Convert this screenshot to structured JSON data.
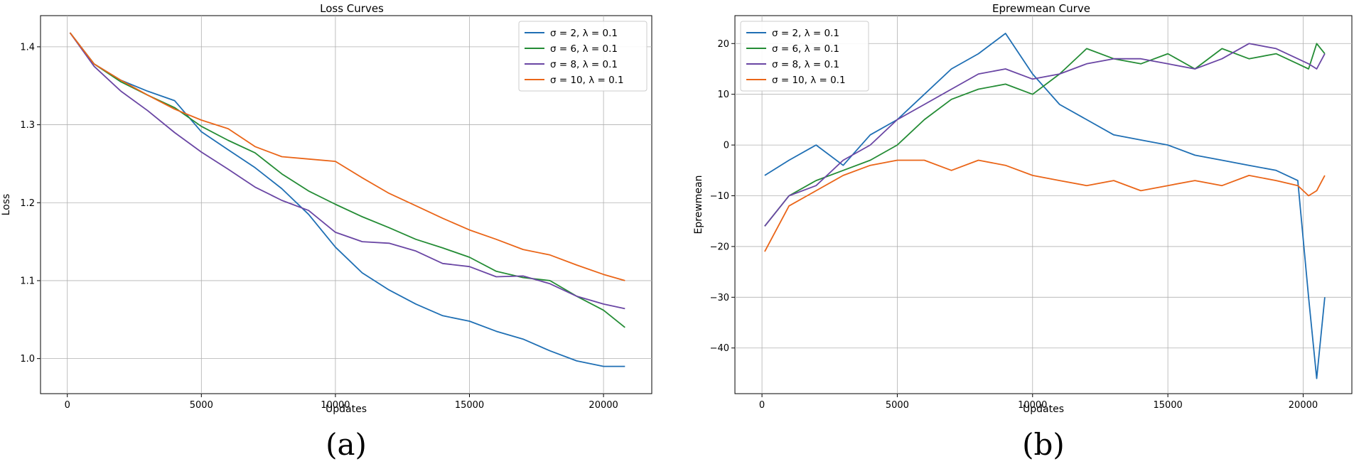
{
  "chart_data": [
    {
      "id": "a",
      "type": "line",
      "title": "Loss Curves",
      "xlabel": "Updates",
      "ylabel": "Loss",
      "caption": "(a)",
      "xlim": [
        -1000,
        21800
      ],
      "ylim": [
        0.955,
        1.44
      ],
      "xticks": [
        0,
        5000,
        10000,
        15000,
        20000
      ],
      "yticks": [
        1.0,
        1.1,
        1.2,
        1.3,
        1.4
      ],
      "ytick_labels": [
        "1.0",
        "1.1",
        "1.2",
        "1.3",
        "1.4"
      ],
      "grid": true,
      "legend_position": "top-right",
      "x": [
        100,
        1000,
        2000,
        3000,
        4000,
        5000,
        6000,
        7000,
        8000,
        9000,
        10000,
        11000,
        12000,
        13000,
        14000,
        15000,
        16000,
        17000,
        18000,
        19000,
        20000,
        20800
      ],
      "series": [
        {
          "name": "σ = 2, λ = 0.1",
          "color": "#1f6fb4",
          "values": [
            1.418,
            1.378,
            1.357,
            1.343,
            1.331,
            1.291,
            1.268,
            1.245,
            1.218,
            1.185,
            1.143,
            1.11,
            1.088,
            1.07,
            1.055,
            1.048,
            1.035,
            1.025,
            1.01,
            0.997,
            0.99,
            0.99
          ]
        },
        {
          "name": "σ = 6, λ = 0.1",
          "color": "#248c35",
          "values": [
            1.418,
            1.378,
            1.355,
            1.338,
            1.322,
            1.298,
            1.28,
            1.264,
            1.237,
            1.215,
            1.198,
            1.182,
            1.168,
            1.153,
            1.142,
            1.13,
            1.112,
            1.104,
            1.1,
            1.08,
            1.062,
            1.04
          ]
        },
        {
          "name": "σ = 8, λ = 0.1",
          "color": "#6a46a4",
          "values": [
            1.418,
            1.375,
            1.343,
            1.318,
            1.29,
            1.265,
            1.243,
            1.22,
            1.203,
            1.19,
            1.162,
            1.15,
            1.148,
            1.138,
            1.122,
            1.118,
            1.105,
            1.106,
            1.096,
            1.08,
            1.07,
            1.064
          ]
        },
        {
          "name": "σ = 10, λ = 0.1",
          "color": "#ea6518",
          "values": [
            1.418,
            1.378,
            1.357,
            1.338,
            1.32,
            1.306,
            1.295,
            1.272,
            1.259,
            1.256,
            1.253,
            1.232,
            1.212,
            1.196,
            1.18,
            1.165,
            1.153,
            1.14,
            1.133,
            1.12,
            1.108,
            1.1
          ]
        }
      ]
    },
    {
      "id": "b",
      "type": "line",
      "title": "Eprewmean Curve",
      "xlabel": "Updates",
      "ylabel": "Eprewmean",
      "caption": "(b)",
      "xlim": [
        -1000,
        21800
      ],
      "ylim": [
        -49,
        25.5
      ],
      "xticks": [
        0,
        5000,
        10000,
        15000,
        20000
      ],
      "yticks": [
        -40,
        -30,
        -20,
        -10,
        0,
        10,
        20
      ],
      "ytick_labels": [
        "−40",
        "−30",
        "−20",
        "−10",
        "0",
        "10",
        "20"
      ],
      "grid": true,
      "legend_position": "top-left",
      "x": [
        100,
        1000,
        2000,
        3000,
        4000,
        5000,
        6000,
        7000,
        8000,
        9000,
        10000,
        11000,
        12000,
        13000,
        14000,
        15000,
        16000,
        17000,
        18000,
        19000,
        19800,
        20200,
        20500,
        20800
      ],
      "series": [
        {
          "name": "σ = 2, λ = 0.1",
          "color": "#1f6fb4",
          "values": [
            -6,
            -3,
            0,
            -4,
            2,
            5,
            10,
            15,
            18,
            22,
            14,
            8,
            5,
            2,
            1,
            0,
            -2,
            -3,
            -4,
            -5,
            -7,
            -30,
            -46,
            -30
          ]
        },
        {
          "name": "σ = 6, λ = 0.1",
          "color": "#248c35",
          "values": [
            -16,
            -10,
            -7,
            -5,
            -3,
            0,
            5,
            9,
            11,
            12,
            10,
            14,
            19,
            17,
            16,
            18,
            15,
            19,
            17,
            18,
            16,
            15,
            20,
            18
          ]
        },
        {
          "name": "σ = 8, λ = 0.1",
          "color": "#6a46a4",
          "values": [
            -16,
            -10,
            -8,
            -3,
            0,
            5,
            8,
            11,
            14,
            15,
            13,
            14,
            16,
            17,
            17,
            16,
            15,
            17,
            20,
            19,
            17,
            16,
            15,
            18
          ]
        },
        {
          "name": "σ = 10, λ = 0.1",
          "color": "#ea6518",
          "values": [
            -21,
            -12,
            -9,
            -6,
            -4,
            -3,
            -3,
            -5,
            -3,
            -4,
            -6,
            -7,
            -8,
            -7,
            -9,
            -8,
            -7,
            -8,
            -6,
            -7,
            -8,
            -10,
            -9,
            -6
          ]
        }
      ]
    }
  ]
}
